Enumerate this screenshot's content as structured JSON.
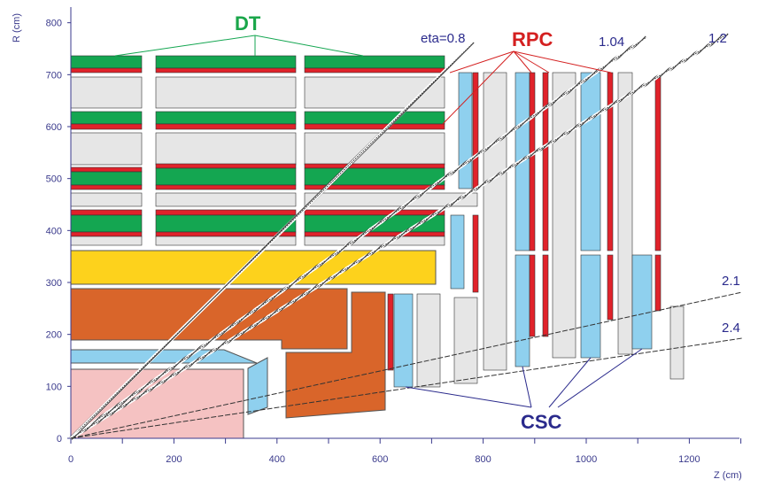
{
  "axes": {
    "x_title": "Z (cm)",
    "y_title": "R (cm)",
    "x_ticks": [
      "0",
      "200",
      "400",
      "600",
      "800",
      "1000",
      "1200"
    ],
    "y_ticks": [
      "0",
      "100",
      "200",
      "300",
      "400",
      "500",
      "600",
      "700",
      "800"
    ]
  },
  "labels": {
    "dt": "DT",
    "rpc": "RPC",
    "csc": "CSC"
  },
  "eta_lines": [
    {
      "label": "eta=0.8",
      "eta": 0.8
    },
    {
      "label": "1.04",
      "eta": 1.04
    },
    {
      "label": "1.2",
      "eta": 1.2
    },
    {
      "label": "2.1",
      "eta": 2.1
    },
    {
      "label": "2.4",
      "eta": 2.4
    }
  ],
  "colors": {
    "dt": "#14a651",
    "rpc": "#e0222a",
    "csc": "#8fd0ee",
    "iron": "#e6e6e6",
    "solenoid": "#fdd21c",
    "hcal": "#d9652a",
    "ecal": "#8fd0ee",
    "tracker": "#f5c2c2",
    "eta_line": "#555555",
    "pointer": "#2a2a8c"
  }
}
